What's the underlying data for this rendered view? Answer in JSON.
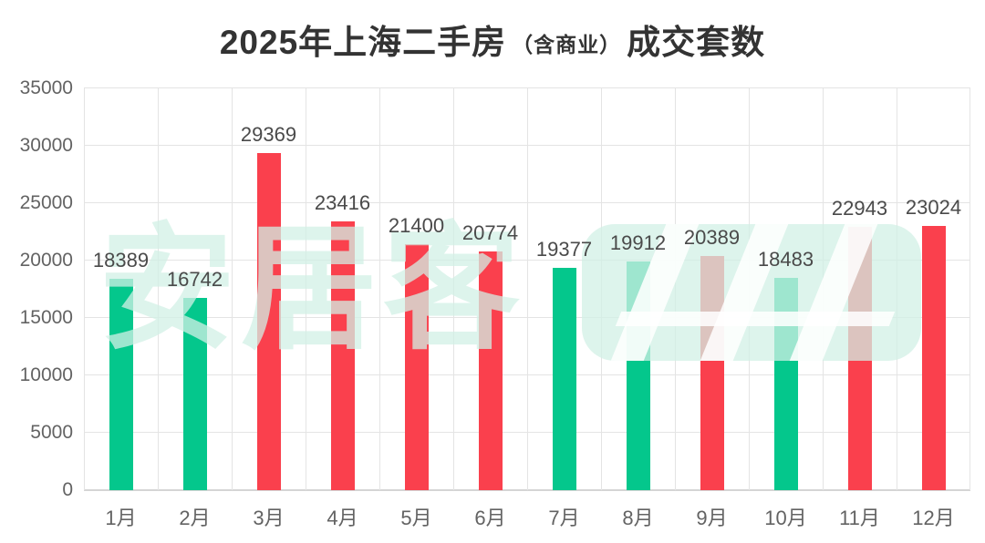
{
  "title": {
    "prefix": "2025年上海二手房",
    "paren": "（含商业）",
    "suffix": "成交套数"
  },
  "watermark": {
    "text": "安居客",
    "color": "rgba(210, 240, 230, 0.75)"
  },
  "palette": {
    "green": "#04c78c",
    "red": "#fa404d",
    "grid": "#e4e4e4",
    "axis_line": "#d5d5d5",
    "tick_text": "#636363",
    "label_text": "#4a4a4a",
    "title_text": "#333333"
  },
  "chart_data": {
    "type": "bar",
    "title": "2025年上海二手房（含商业）成交套数",
    "xlabel": "",
    "ylabel": "",
    "categories": [
      "1月",
      "2月",
      "3月",
      "4月",
      "5月",
      "6月",
      "7月",
      "8月",
      "9月",
      "10月",
      "11月",
      "12月"
    ],
    "values": [
      18389,
      16742,
      29369,
      23416,
      21400,
      20774,
      19377,
      19912,
      20389,
      18483,
      22943,
      23024
    ],
    "bar_color_keys": [
      "green",
      "green",
      "red",
      "red",
      "red",
      "red",
      "green",
      "green",
      "red",
      "green",
      "red",
      "red"
    ],
    "ylim": [
      0,
      35000
    ],
    "y_ticks": [
      0,
      5000,
      10000,
      15000,
      20000,
      25000,
      30000,
      35000
    ],
    "grid": "both",
    "data_labels": true,
    "legend": "none"
  }
}
